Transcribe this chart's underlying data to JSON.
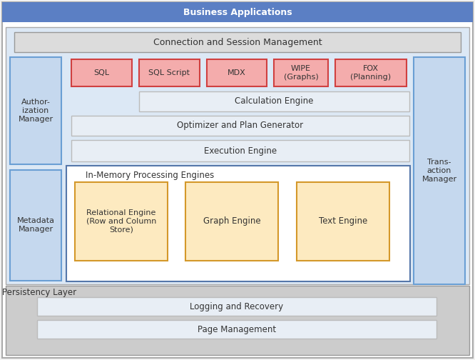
{
  "title": "Business Applications",
  "title_bg": "#5B7FC4",
  "title_fg": "#FFFFFF",
  "conn_session": "Connection and Session Management",
  "conn_bg": "#DCDCDC",
  "conn_border": "#999999",
  "auth_label": "Author-\nization\nManager",
  "auth_bg": "#C5D8EE",
  "auth_border": "#6A9FD4",
  "meta_label": "Metadata\nManager",
  "meta_bg": "#C5D8EE",
  "meta_border": "#6A9FD4",
  "trans_label": "Trans-\naction\nManager",
  "trans_bg": "#C5D8EE",
  "trans_border": "#6A9FD4",
  "sql_boxes": [
    "SQL",
    "SQL Script",
    "MDX",
    "WIPE\n(Graphs)",
    "FOX\n(Planning)"
  ],
  "sql_bg": "#F4ACAC",
  "sql_border": "#D04040",
  "calc_engine": "Calculation Engine",
  "opt_plan": "Optimizer and Plan Generator",
  "exec_engine": "Execution Engine",
  "engine_bg": "#E8EEF5",
  "engine_border": "#BBBBBB",
  "inmem_label": "In-Memory Processing Engines",
  "inmem_bg": "#FFFFFF",
  "inmem_border": "#5577AA",
  "rel_engine": "Relational Engine\n(Row and Column\nStore)",
  "graph_engine": "Graph Engine",
  "text_engine": "Text Engine",
  "proc_box_bg_top": "#F5C880",
  "proc_box_bg_bot": "#FDEAC0",
  "proc_box_border": "#D4982A",
  "persistency_label": "Persistency Layer",
  "persistency_bg": "#CCCCCC",
  "persistency_border": "#999999",
  "logging": "Logging and Recovery",
  "page_mgmt": "Page Management",
  "persist_inner_bg": "#E8EEF5",
  "persist_inner_border": "#BBBBBB",
  "outer_bg": "#FFFFFF",
  "outer_border": "#AAAAAA",
  "main_bg": "#DCE8F5",
  "main_border": "#AAAAAA",
  "fig_bg": "#F2F2F2"
}
